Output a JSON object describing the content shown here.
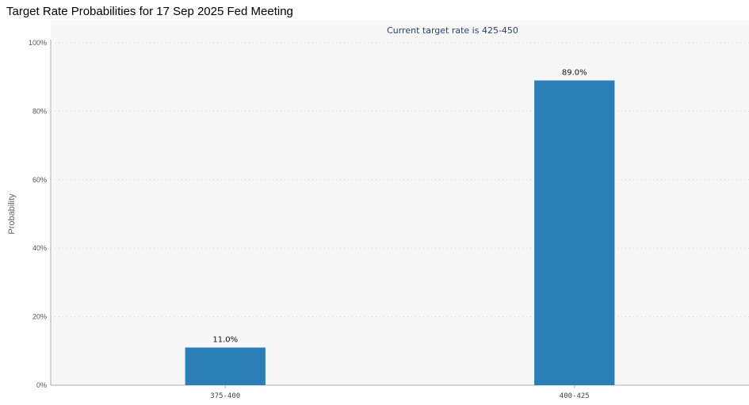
{
  "page": {
    "title": "Target Rate Probabilities for 17 Sep 2025 Fed Meeting"
  },
  "chart_data": {
    "type": "bar",
    "title": "Target Rate Probabilities for 17 Sep 2025 Fed Meeting",
    "subtitle": "Current target rate is 425-450",
    "xlabel": "",
    "ylabel": "Probability",
    "categories": [
      "375-400",
      "400-425"
    ],
    "values": [
      11.0,
      89.0
    ],
    "data_labels": [
      "11.0%",
      "89.0%"
    ],
    "ylim": [
      0,
      100
    ],
    "yticks": [
      0,
      20,
      40,
      60,
      80,
      100
    ],
    "ytick_labels": [
      "0%",
      "20%",
      "40%",
      "60%",
      "80%",
      "100%"
    ],
    "grid": true,
    "legend": "none",
    "colors": {
      "bar": "#2a7fb8",
      "subtitle": "#2b3f6b",
      "plot_background": "#f7f7f7"
    }
  }
}
